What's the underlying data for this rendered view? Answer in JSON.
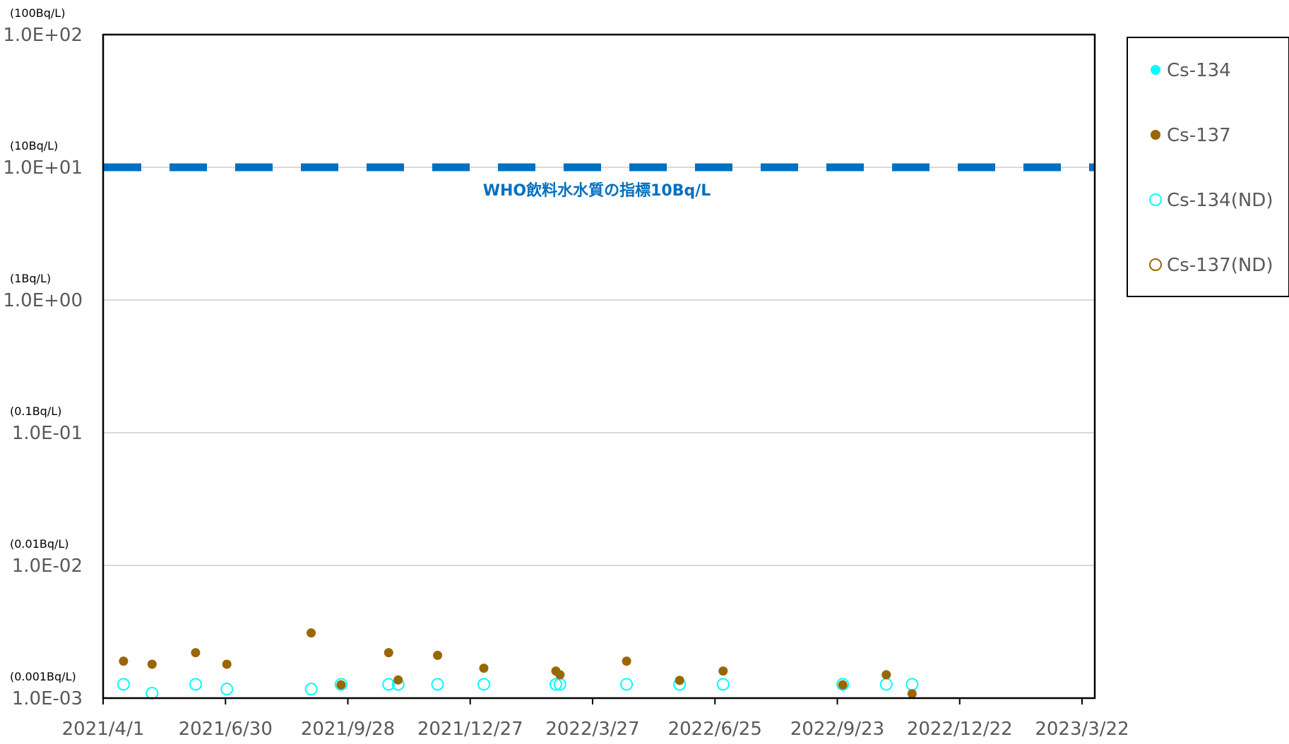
{
  "chart_data": {
    "type": "scatter",
    "title": "",
    "xlabel": "",
    "ylabel": "",
    "y_scale": "log",
    "ylim": [
      0.001,
      100
    ],
    "xlim": [
      "2021-04-01",
      "2023-03-31"
    ],
    "grid": "horizontal",
    "y_ticks": [
      {
        "value": 100,
        "label": "1.0E+02",
        "unit": "(100Bq/L)"
      },
      {
        "value": 10,
        "label": "1.0E+01",
        "unit": "(10Bq/L)"
      },
      {
        "value": 1,
        "label": "1.0E+00",
        "unit": "(1Bq/L)"
      },
      {
        "value": 0.1,
        "label": "1.0E-01",
        "unit": "(0.1Bq/L)"
      },
      {
        "value": 0.01,
        "label": "1.0E-02",
        "unit": "(0.01Bq/L)"
      },
      {
        "value": 0.001,
        "label": "1.0E-03",
        "unit": "(0.001Bq/L)"
      }
    ],
    "x_ticks": [
      {
        "date": "2021-04-01",
        "label": "2021/4/1"
      },
      {
        "date": "2021-06-30",
        "label": "2021/6/30"
      },
      {
        "date": "2021-09-28",
        "label": "2021/9/28"
      },
      {
        "date": "2021-12-27",
        "label": "2021/12/27"
      },
      {
        "date": "2022-03-27",
        "label": "2022/3/27"
      },
      {
        "date": "2022-06-25",
        "label": "2022/6/25"
      },
      {
        "date": "2022-09-23",
        "label": "2022/9/23"
      },
      {
        "date": "2022-12-22",
        "label": "2022/12/22"
      },
      {
        "date": "2023-03-22",
        "label": "2023/3/22"
      }
    ],
    "reference_line": {
      "value": 10,
      "label": "WHO飲料水水質の指標10Bq/L",
      "color": "#0070c0"
    },
    "legend_position": "right",
    "series": [
      {
        "name": "Cs-134",
        "color": "#00ffff",
        "marker": "filled",
        "points": []
      },
      {
        "name": "Cs-137",
        "color": "#996600",
        "marker": "filled",
        "points": [
          {
            "x": "2021-04-16",
            "y": 0.0019
          },
          {
            "x": "2021-05-07",
            "y": 0.0018
          },
          {
            "x": "2021-06-08",
            "y": 0.0022
          },
          {
            "x": "2021-07-01",
            "y": 0.0018
          },
          {
            "x": "2021-09-01",
            "y": 0.0031
          },
          {
            "x": "2021-09-23",
            "y": 0.00126
          },
          {
            "x": "2021-10-28",
            "y": 0.0022
          },
          {
            "x": "2021-11-04",
            "y": 0.00137
          },
          {
            "x": "2021-12-03",
            "y": 0.0021
          },
          {
            "x": "2022-01-06",
            "y": 0.00168
          },
          {
            "x": "2022-02-28",
            "y": 0.0016
          },
          {
            "x": "2022-03-03",
            "y": 0.0015
          },
          {
            "x": "2022-04-21",
            "y": 0.0019
          },
          {
            "x": "2022-05-30",
            "y": 0.00136
          },
          {
            "x": "2022-07-01",
            "y": 0.0016
          },
          {
            "x": "2022-09-27",
            "y": 0.00126
          },
          {
            "x": "2022-10-29",
            "y": 0.0015
          },
          {
            "x": "2022-11-17",
            "y": 0.00108
          }
        ]
      },
      {
        "name": "Cs-134(ND)",
        "color": "#00ffff",
        "marker": "open",
        "points": [
          {
            "x": "2021-04-16",
            "y": 0.00127
          },
          {
            "x": "2021-05-07",
            "y": 0.00109
          },
          {
            "x": "2021-06-08",
            "y": 0.00127
          },
          {
            "x": "2021-07-01",
            "y": 0.00117
          },
          {
            "x": "2021-09-01",
            "y": 0.00117
          },
          {
            "x": "2021-09-23",
            "y": 0.00127
          },
          {
            "x": "2021-10-28",
            "y": 0.00127
          },
          {
            "x": "2021-11-04",
            "y": 0.00127
          },
          {
            "x": "2021-12-03",
            "y": 0.00127
          },
          {
            "x": "2022-01-06",
            "y": 0.00127
          },
          {
            "x": "2022-02-28",
            "y": 0.00127
          },
          {
            "x": "2022-03-03",
            "y": 0.00127
          },
          {
            "x": "2022-04-21",
            "y": 0.00127
          },
          {
            "x": "2022-05-30",
            "y": 0.00127
          },
          {
            "x": "2022-07-01",
            "y": 0.00127
          },
          {
            "x": "2022-09-27",
            "y": 0.00127
          },
          {
            "x": "2022-10-29",
            "y": 0.00127
          },
          {
            "x": "2022-11-17",
            "y": 0.00127
          }
        ]
      },
      {
        "name": "Cs-137(ND)",
        "color": "#996600",
        "marker": "open",
        "points": []
      }
    ]
  }
}
